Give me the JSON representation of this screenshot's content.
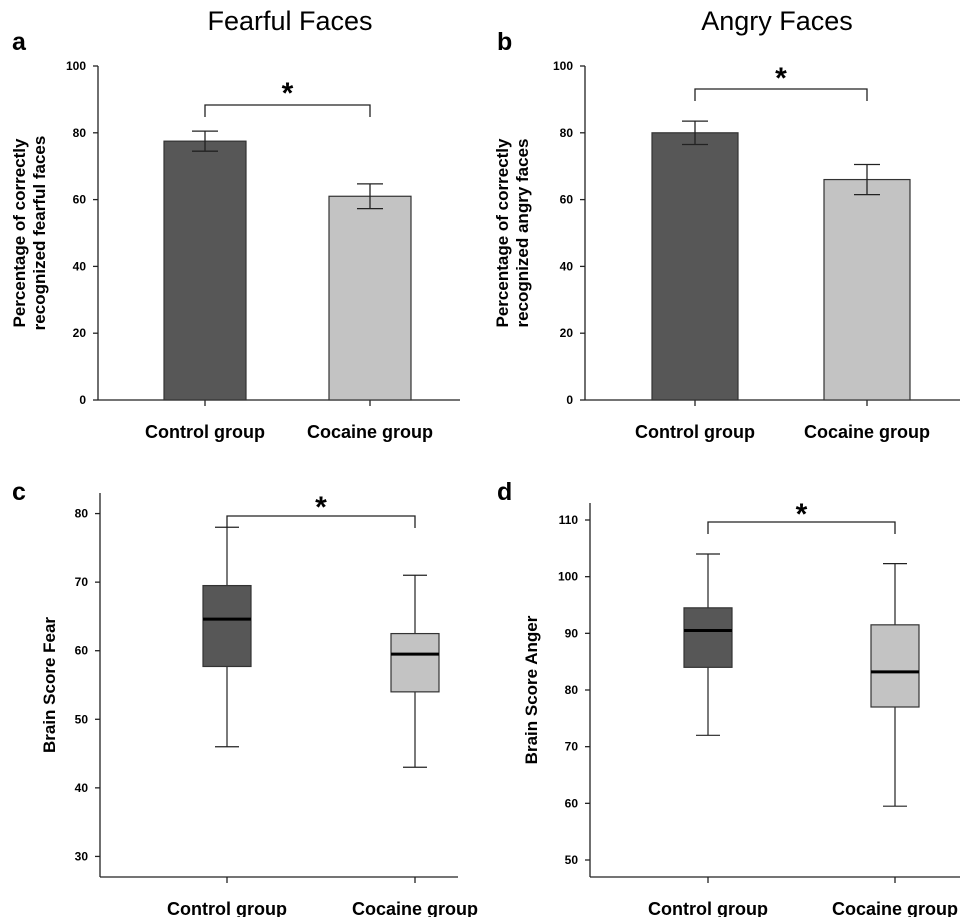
{
  "chart_data": [
    {
      "panel": "a",
      "type": "bar",
      "title": "Fearful Faces",
      "categories": [
        "Control group",
        "Cocaine group"
      ],
      "values": [
        77.5,
        61
      ],
      "error": [
        3,
        3.7
      ],
      "colors": [
        "#575757",
        "#c3c3c3"
      ],
      "ylabel": "Percentage of correctly recognized fearful faces",
      "ylabel_lines": [
        "Percentage of correctly",
        "recognized fearful faces"
      ],
      "ylim": [
        0,
        100
      ],
      "yticks": [
        0,
        20,
        40,
        60,
        80,
        100
      ],
      "significance": "*"
    },
    {
      "panel": "b",
      "type": "bar",
      "title": "Angry Faces",
      "categories": [
        "Control group",
        "Cocaine group"
      ],
      "values": [
        80,
        66
      ],
      "error": [
        3.5,
        4.5
      ],
      "colors": [
        "#575757",
        "#c3c3c3"
      ],
      "ylabel": "Percentage of correctly recognized angry faces",
      "ylabel_lines": [
        "Percentage of correctly",
        "recognized angry faces"
      ],
      "ylim": [
        0,
        100
      ],
      "yticks": [
        0,
        20,
        40,
        60,
        80,
        100
      ],
      "significance": "*"
    },
    {
      "panel": "c",
      "type": "box",
      "categories": [
        "Control group",
        "Cocaine group"
      ],
      "boxes": [
        {
          "whisker_low": 46,
          "q1": 57.7,
          "median": 64.6,
          "q3": 69.5,
          "whisker_high": 78
        },
        {
          "whisker_low": 43,
          "q1": 54,
          "median": 59.5,
          "q3": 62.5,
          "whisker_high": 71
        }
      ],
      "colors": [
        "#575757",
        "#c3c3c3"
      ],
      "ylabel": "Brain Score Fear",
      "ylim": [
        27,
        83
      ],
      "yticks": [
        30,
        40,
        50,
        60,
        70,
        80
      ],
      "significance": "*"
    },
    {
      "panel": "d",
      "type": "box",
      "categories": [
        "Control group",
        "Cocaine group"
      ],
      "boxes": [
        {
          "whisker_low": 72,
          "q1": 84,
          "median": 90.5,
          "q3": 94.5,
          "whisker_high": 104
        },
        {
          "whisker_low": 59.5,
          "q1": 77,
          "median": 83.2,
          "q3": 91.5,
          "whisker_high": 102.3
        }
      ],
      "colors": [
        "#575757",
        "#c3c3c3"
      ],
      "ylabel": "Brain Score Anger",
      "ylim": [
        47,
        113
      ],
      "yticks": [
        50,
        60,
        70,
        80,
        90,
        100,
        110
      ],
      "significance": "*"
    }
  ]
}
